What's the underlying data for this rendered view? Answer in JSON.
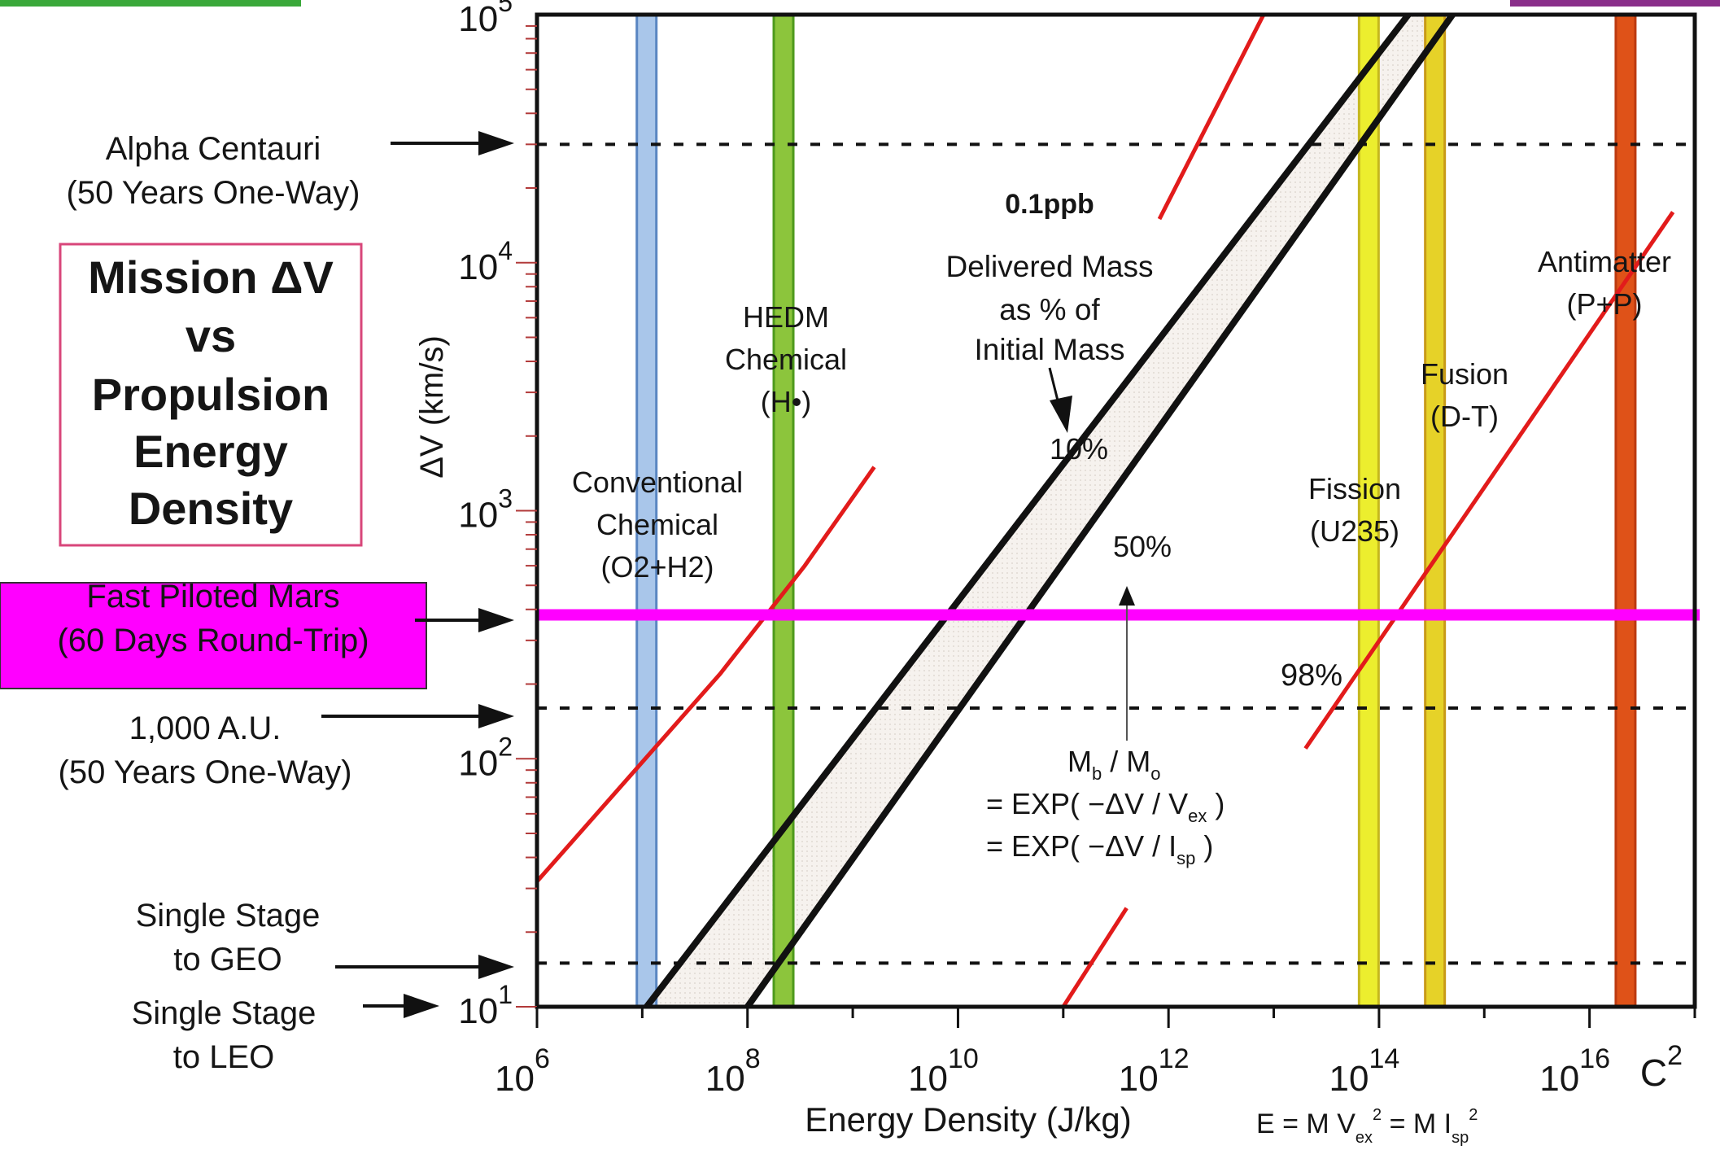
{
  "title": [
    "Mission ΔV",
    "vs",
    "Propulsion",
    "Energy",
    "Density"
  ],
  "chart_data": {
    "type": "line",
    "title": "Mission ΔV vs Propulsion Energy Density",
    "xlabel": "Energy Density (J/kg)",
    "ylabel": "ΔV (km/s)",
    "x_scale": "log",
    "y_scale": "log",
    "xlim": [
      1000000,
      1e+17
    ],
    "ylim": [
      10,
      100000
    ],
    "x_ticks": [
      {
        "value": 1000000,
        "base": "10",
        "exp": "6"
      },
      {
        "value": 100000000,
        "base": "10",
        "exp": "8"
      },
      {
        "value": 10000000000,
        "base": "10",
        "exp": "10"
      },
      {
        "value": 1000000000000,
        "base": "10",
        "exp": "12"
      },
      {
        "value": 100000000000000,
        "base": "10",
        "exp": "14"
      },
      {
        "value": 10000000000000000,
        "base": "10",
        "exp": "16"
      }
    ],
    "x_end_label": {
      "base": "C",
      "exp": "2"
    },
    "y_ticks": [
      {
        "value": 10,
        "base": "10",
        "exp": "1"
      },
      {
        "value": 100,
        "base": "10",
        "exp": "2"
      },
      {
        "value": 1000,
        "base": "10",
        "exp": "3"
      },
      {
        "value": 10000,
        "base": "10",
        "exp": "4"
      },
      {
        "value": 100000,
        "base": "10",
        "exp": "5"
      }
    ],
    "propulsion_bands": [
      {
        "label": [
          "Conventional",
          "Chemical",
          "(O2+H2)"
        ],
        "energy_density": 11000000,
        "color": "#a9c6ea",
        "edge": "#5a86c2"
      },
      {
        "label": [
          "HEDM",
          "Chemical",
          "(H•)"
        ],
        "energy_density": 220000000,
        "color": "#8cc53c",
        "edge": "#4e9a1d"
      },
      {
        "label": [
          "Fission",
          "(U235)"
        ],
        "energy_density": 80000000000000,
        "color": "#ecee2e",
        "edge": "#c6b81e"
      },
      {
        "label": [
          "Fusion",
          "(D-T)"
        ],
        "energy_density": 340000000000000,
        "color": "#e6d228",
        "edge": "#c89a18"
      },
      {
        "label": [
          "Antimatter",
          "(P+P)"
        ],
        "energy_density": 22000000000000000,
        "color": "#df5218",
        "edge": "#bc3a10"
      }
    ],
    "missions": [
      {
        "label": [
          "Alpha Centauri",
          "(50 Years One-Way)"
        ],
        "delta_v": 30000,
        "line": "dashed"
      },
      {
        "label": [
          "Fast Piloted Mars",
          "(60 Days Round-Trip)"
        ],
        "delta_v": 380,
        "line": "solid",
        "color": "#ff00ff"
      },
      {
        "label": [
          "1,000 A.U.",
          "(50 Years One-Way)"
        ],
        "delta_v": 160,
        "line": "dashed"
      },
      {
        "label": [
          "Single Stage",
          "to GEO"
        ],
        "delta_v": 15,
        "line": "dashed"
      },
      {
        "label": [
          "Single Stage",
          "to LEO"
        ],
        "delta_v": 10,
        "line": "none"
      }
    ],
    "series": [
      {
        "name": "10%",
        "color": "#111111",
        "points": [
          [
            11000000,
            10
          ],
          [
            190000000000000.0,
            100000
          ]
        ]
      },
      {
        "name": "50%",
        "color": "#111111",
        "points": [
          [
            100000000,
            10
          ],
          [
            500000000000000.0,
            100000
          ]
        ]
      },
      {
        "name": "0.1ppb",
        "color": "#e21b1b",
        "points": [
          [
            1000000,
            32
          ],
          [
            55000000.0,
            220
          ],
          [
            350000000.0,
            600
          ],
          [
            1600000000.0,
            1500
          ]
        ]
      },
      {
        "name": "0.1ppb",
        "color": "#e21b1b",
        "points": [
          [
            820000000000.0,
            15000
          ],
          [
            8000000000000.0,
            100000
          ]
        ]
      },
      {
        "name": "98%",
        "color": "#e21b1b",
        "points": [
          [
            100000000000.0,
            10
          ],
          [
            400000000000.0,
            25
          ]
        ]
      },
      {
        "name": "98%",
        "color": "#e21b1b",
        "points": [
          [
            20000000000000.0,
            110
          ],
          [
            6.2e+16,
            16000
          ]
        ]
      }
    ],
    "series_labels": [
      {
        "text": "10%",
        "color": "#111111",
        "bold": false
      },
      {
        "text": "50%",
        "color": "#111111",
        "bold": false
      },
      {
        "text": "0.1ppb",
        "color": "#e21b1b",
        "bold": true
      },
      {
        "text": "98%",
        "color": "#d63a1a",
        "bold": false
      }
    ],
    "annotations": {
      "delivered_mass": [
        "Delivered Mass",
        "as % of",
        "Initial Mass"
      ],
      "rocket_equation_lhs": [
        "M",
        "b",
        " / M",
        "o"
      ],
      "rocket_eq_vex": [
        "= EXP( −ΔV / V",
        "ex",
        " )"
      ],
      "rocket_eq_isp": [
        "= EXP( −ΔV / I",
        "sp",
        " )"
      ],
      "energy_formula": [
        "E = M V",
        "ex",
        "2",
        " = M I",
        "sp",
        "2"
      ]
    },
    "grid": false
  }
}
